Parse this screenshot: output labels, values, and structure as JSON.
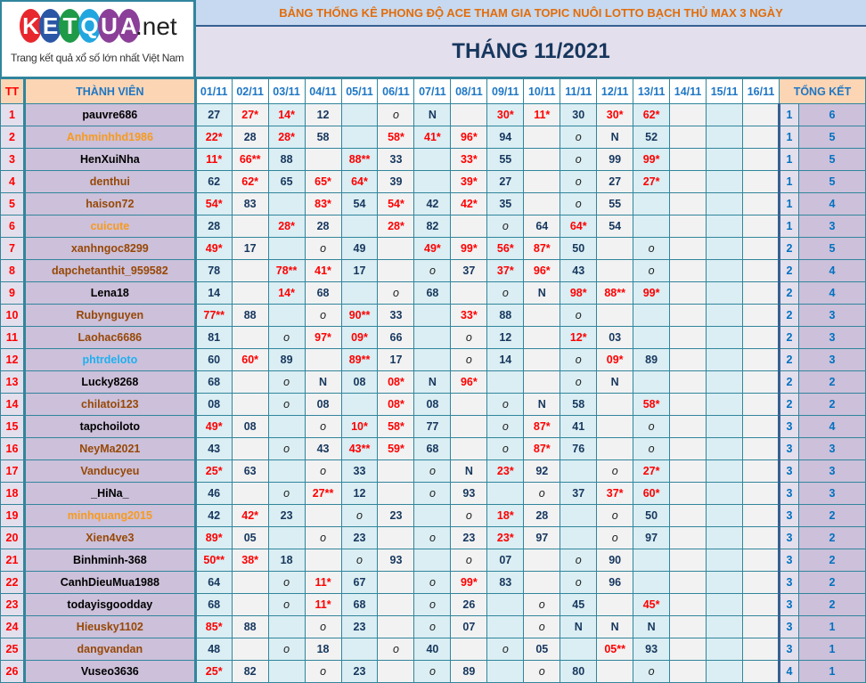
{
  "logo": {
    "letters": [
      "K",
      "E",
      "T",
      "Q",
      "U",
      "A"
    ],
    "letter_colors": [
      "#e8262d",
      "#2a56a5",
      "#1f9a48",
      "#22a6df",
      "#8b3f98",
      "#8b3f98"
    ],
    "suffix": ".net",
    "tagline": "Trang kết quả xổ số lớn nhất Việt Nam"
  },
  "header": {
    "title": "BẢNG THỐNG KÊ PHONG ĐỘ ACE THAM GIA TOPIC NUÔI LOTTO BẠCH THỦ MAX 3 NGÀY",
    "month": "THÁNG 11/2021"
  },
  "columns": {
    "tt": "TT",
    "member": "THÀNH VIÊN",
    "days": [
      "01/11",
      "02/11",
      "03/11",
      "04/11",
      "05/11",
      "06/11",
      "07/11",
      "08/11",
      "09/11",
      "10/11",
      "11/11",
      "12/11",
      "13/11",
      "14/11",
      "15/11",
      "16/11"
    ],
    "summary": "TỔNG KẾT"
  },
  "name_colors": {
    "black": "#000000",
    "orange": "#f79a1e",
    "brown": "#974806",
    "blue": "#1fb0ef"
  },
  "rows": [
    {
      "tt": "1",
      "name": "pauvre686",
      "color": "black",
      "cells": [
        "27",
        "27*",
        "14*",
        "12",
        "",
        "o",
        "N",
        "",
        "30*",
        "11*",
        "30",
        "30*",
        "62*",
        "",
        "",
        ""
      ],
      "s1": "1",
      "s2": "6"
    },
    {
      "tt": "2",
      "name": "Anhminhhd1986",
      "color": "orange",
      "cells": [
        "22*",
        "28",
        "28*",
        "58",
        "",
        "58*",
        "41*",
        "96*",
        "94",
        "",
        "o",
        "N",
        "52",
        "",
        "",
        ""
      ],
      "s1": "1",
      "s2": "5"
    },
    {
      "tt": "3",
      "name": "HenXuiNha",
      "color": "black",
      "cells": [
        "11*",
        "66**",
        "88",
        "",
        "88**",
        "33",
        "",
        "33*",
        "55",
        "",
        "o",
        "99",
        "99*",
        "",
        "",
        ""
      ],
      "s1": "1",
      "s2": "5"
    },
    {
      "tt": "4",
      "name": "denthui",
      "color": "brown",
      "cells": [
        "62",
        "62*",
        "65",
        "65*",
        "64*",
        "39",
        "",
        "39*",
        "27",
        "",
        "o",
        "27",
        "27*",
        "",
        "",
        ""
      ],
      "s1": "1",
      "s2": "5"
    },
    {
      "tt": "5",
      "name": "haison72",
      "color": "brown",
      "cells": [
        "54*",
        "83",
        "",
        "83*",
        "54",
        "54*",
        "42",
        "42*",
        "35",
        "",
        "o",
        "55",
        "",
        "",
        "",
        ""
      ],
      "s1": "1",
      "s2": "4"
    },
    {
      "tt": "6",
      "name": "cuicute",
      "color": "orange",
      "cells": [
        "28",
        "",
        "28*",
        "28",
        "",
        "28*",
        "82",
        "",
        "o",
        "64",
        "64*",
        "54",
        "",
        "",
        "",
        ""
      ],
      "s1": "1",
      "s2": "3"
    },
    {
      "tt": "7",
      "name": "xanhngoc8299",
      "color": "brown",
      "cells": [
        "49*",
        "17",
        "",
        "o",
        "49",
        "",
        "49*",
        "99*",
        "56*",
        "87*",
        "50",
        "",
        "o",
        "",
        "",
        ""
      ],
      "s1": "2",
      "s2": "5"
    },
    {
      "tt": "8",
      "name": "dapchetanthit_959582",
      "color": "brown",
      "cells": [
        "78",
        "",
        "78**",
        "41*",
        "17",
        "",
        "o",
        "37",
        "37*",
        "96*",
        "43",
        "",
        "o",
        "",
        "",
        ""
      ],
      "s1": "2",
      "s2": "4"
    },
    {
      "tt": "9",
      "name": "Lena18",
      "color": "black",
      "cells": [
        "14",
        "",
        "14*",
        "68",
        "",
        "o",
        "68",
        "",
        "o",
        "N",
        "98*",
        "88**",
        "99*",
        "",
        "",
        ""
      ],
      "s1": "2",
      "s2": "4"
    },
    {
      "tt": "10",
      "name": "Rubynguyen",
      "color": "brown",
      "cells": [
        "77**",
        "88",
        "",
        "o",
        "90**",
        "33",
        "",
        "33*",
        "88",
        "",
        "o",
        "",
        "",
        "",
        "",
        ""
      ],
      "s1": "2",
      "s2": "3"
    },
    {
      "tt": "11",
      "name": "Laohac6686",
      "color": "brown",
      "cells": [
        "81",
        "",
        "o",
        "97*",
        "09*",
        "66",
        "",
        "o",
        "12",
        "",
        "12*",
        "03",
        "",
        "",
        "",
        ""
      ],
      "s1": "2",
      "s2": "3"
    },
    {
      "tt": "12",
      "name": "phtrdeloto",
      "color": "blue",
      "cells": [
        "60",
        "60*",
        "89",
        "",
        "89**",
        "17",
        "",
        "o",
        "14",
        "",
        "o",
        "09*",
        "89",
        "",
        "",
        ""
      ],
      "s1": "2",
      "s2": "3"
    },
    {
      "tt": "13",
      "name": "Lucky8268",
      "color": "black",
      "cells": [
        "68",
        "",
        "o",
        "N",
        "08",
        "08*",
        "N",
        "96*",
        "",
        "",
        "o",
        "N",
        "",
        "",
        "",
        ""
      ],
      "s1": "2",
      "s2": "2"
    },
    {
      "tt": "14",
      "name": "chilatoi123",
      "color": "brown",
      "cells": [
        "08",
        "",
        "o",
        "08",
        "",
        "08*",
        "08",
        "",
        "o",
        "N",
        "58",
        "",
        "58*",
        "",
        "",
        ""
      ],
      "s1": "2",
      "s2": "2"
    },
    {
      "tt": "15",
      "name": "tapchoiloto",
      "color": "black",
      "cells": [
        "49*",
        "08",
        "",
        "o",
        "10*",
        "58*",
        "77",
        "",
        "o",
        "87*",
        "41",
        "",
        "o",
        "",
        "",
        ""
      ],
      "s1": "3",
      "s2": "4"
    },
    {
      "tt": "16",
      "name": "NeyMa2021",
      "color": "brown",
      "cells": [
        "43",
        "",
        "o",
        "43",
        "43**",
        "59*",
        "68",
        "",
        "o",
        "87*",
        "76",
        "",
        "o",
        "",
        "",
        ""
      ],
      "s1": "3",
      "s2": "3"
    },
    {
      "tt": "17",
      "name": "Vanducyeu",
      "color": "brown",
      "cells": [
        "25*",
        "63",
        "",
        "o",
        "33",
        "",
        "o",
        "N",
        "23*",
        "92",
        "",
        "o",
        "27*",
        "",
        "",
        ""
      ],
      "s1": "3",
      "s2": "3"
    },
    {
      "tt": "18",
      "name": "_HiNa_",
      "color": "black",
      "cells": [
        "46",
        "",
        "o",
        "27**",
        "12",
        "",
        "o",
        "93",
        "",
        "o",
        "37",
        "37*",
        "60*",
        "",
        "",
        ""
      ],
      "s1": "3",
      "s2": "3"
    },
    {
      "tt": "19",
      "name": "minhquang2015",
      "color": "orange",
      "cells": [
        "42",
        "42*",
        "23",
        "",
        "o",
        "23",
        "",
        "o",
        "18*",
        "28",
        "",
        "o",
        "50",
        "",
        "",
        ""
      ],
      "s1": "3",
      "s2": "2"
    },
    {
      "tt": "20",
      "name": "Xien4ve3",
      "color": "brown",
      "cells": [
        "89*",
        "05",
        "",
        "o",
        "23",
        "",
        "o",
        "23",
        "23*",
        "97",
        "",
        "o",
        "97",
        "",
        "",
        ""
      ],
      "s1": "3",
      "s2": "2"
    },
    {
      "tt": "21",
      "name": "Binhminh-368",
      "color": "black",
      "cells": [
        "50**",
        "38*",
        "18",
        "",
        "o",
        "93",
        "",
        "o",
        "07",
        "",
        "o",
        "90",
        "",
        "",
        "",
        ""
      ],
      "s1": "3",
      "s2": "2"
    },
    {
      "tt": "22",
      "name": "CanhDieuMua1988",
      "color": "black",
      "cells": [
        "64",
        "",
        "o",
        "11*",
        "67",
        "",
        "o",
        "99*",
        "83",
        "",
        "o",
        "96",
        "",
        "",
        "",
        ""
      ],
      "s1": "3",
      "s2": "2"
    },
    {
      "tt": "23",
      "name": "todayisgoodday",
      "color": "black",
      "cells": [
        "68",
        "",
        "o",
        "11*",
        "68",
        "",
        "o",
        "26",
        "",
        "o",
        "45",
        "",
        "45*",
        "",
        "",
        ""
      ],
      "s1": "3",
      "s2": "2"
    },
    {
      "tt": "24",
      "name": "Hieusky1102",
      "color": "brown",
      "cells": [
        "85*",
        "88",
        "",
        "o",
        "23",
        "",
        "o",
        "07",
        "",
        "o",
        "N",
        "N",
        "N",
        "",
        "",
        ""
      ],
      "s1": "3",
      "s2": "1"
    },
    {
      "tt": "25",
      "name": "dangvandan",
      "color": "brown",
      "cells": [
        "48",
        "",
        "o",
        "18",
        "",
        "o",
        "40",
        "",
        "o",
        "05",
        "",
        "05**",
        "93",
        "",
        "",
        ""
      ],
      "s1": "3",
      "s2": "1"
    },
    {
      "tt": "26",
      "name": "Vuseo3636",
      "color": "black",
      "cells": [
        "25*",
        "82",
        "",
        "o",
        "23",
        "",
        "o",
        "89",
        "",
        "o",
        "80",
        "",
        "o",
        "",
        "",
        ""
      ],
      "s1": "4",
      "s2": "1"
    }
  ]
}
